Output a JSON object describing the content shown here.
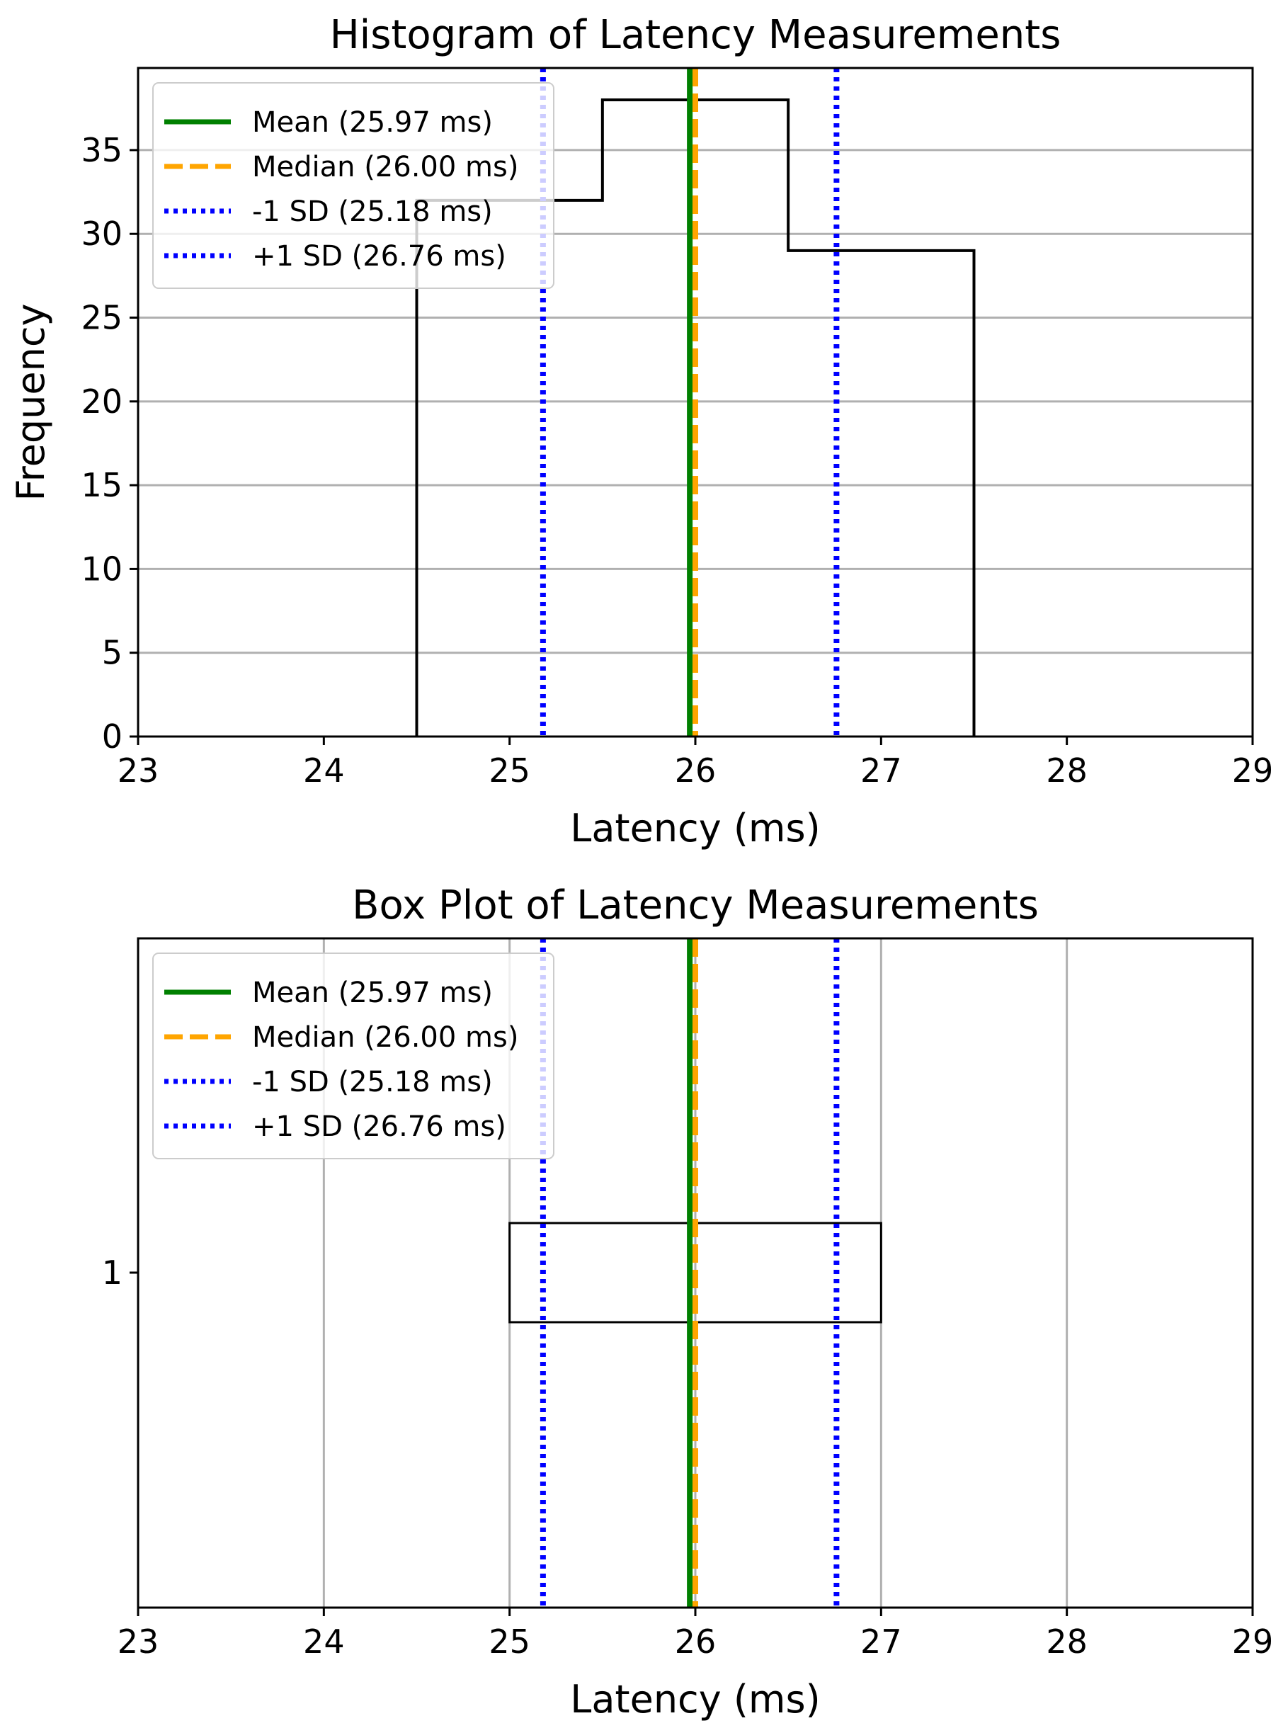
{
  "chart_data": [
    {
      "type": "histogram",
      "title": "Histogram of Latency Measurements",
      "xlabel": "Latency (ms)",
      "ylabel": "Frequency",
      "xlim": [
        23,
        29
      ],
      "ylim": [
        0,
        39.9
      ],
      "xticks": [
        23,
        24,
        25,
        26,
        27,
        28,
        29
      ],
      "yticks": [
        0,
        5,
        10,
        15,
        20,
        25,
        30,
        35
      ],
      "grid": "y",
      "legend_position": "upper left",
      "bins": [
        {
          "start": 24.5,
          "end": 25.5,
          "count": 32
        },
        {
          "start": 25.5,
          "end": 26.5,
          "count": 38
        },
        {
          "start": 26.5,
          "end": 27.5,
          "count": 29
        }
      ],
      "lines": [
        {
          "label": "Mean (25.97 ms)",
          "x": 25.97,
          "color": "#008000",
          "style": "solid"
        },
        {
          "label": "Median (26.00 ms)",
          "x": 26.0,
          "color": "#ffa500",
          "style": "dashed"
        },
        {
          "label": "-1 SD (25.18 ms)",
          "x": 25.18,
          "color": "#0000ff",
          "style": "dotted"
        },
        {
          "label": "+1 SD (26.76 ms)",
          "x": 26.76,
          "color": "#0000ff",
          "style": "dotted"
        }
      ]
    },
    {
      "type": "box",
      "title": "Box Plot of Latency Measurements",
      "xlabel": "Latency (ms)",
      "xlim": [
        23,
        29
      ],
      "xticks": [
        23,
        24,
        25,
        26,
        27,
        28,
        29
      ],
      "yticks": [
        "1"
      ],
      "grid": "x",
      "legend_position": "upper left",
      "box": {
        "q1": 25.0,
        "median": 26.0,
        "q3": 27.0
      },
      "lines": [
        {
          "label": "Mean (25.97 ms)",
          "x": 25.97,
          "color": "#008000",
          "style": "solid"
        },
        {
          "label": "Median (26.00 ms)",
          "x": 26.0,
          "color": "#ffa500",
          "style": "dashed"
        },
        {
          "label": "-1 SD (25.18 ms)",
          "x": 25.18,
          "color": "#0000ff",
          "style": "dotted"
        },
        {
          "label": "+1 SD (26.76 ms)",
          "x": 26.76,
          "color": "#0000ff",
          "style": "dotted"
        }
      ]
    }
  ]
}
